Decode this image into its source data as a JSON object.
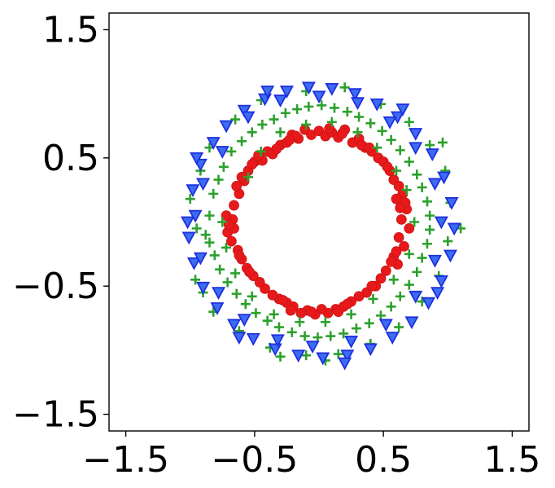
{
  "chart_data": {
    "type": "scatter",
    "title": "",
    "xlabel": "",
    "ylabel": "",
    "xlim": [
      -1.63,
      1.63
    ],
    "ylim": [
      -1.63,
      1.63
    ],
    "grid": false,
    "legend": "none",
    "x_ticks": [
      {
        "value": -1.5,
        "label": "−1.5"
      },
      {
        "value": -0.5,
        "label": "−0.5"
      },
      {
        "value": 0.5,
        "label": "0.5"
      },
      {
        "value": 1.5,
        "label": "1.5"
      }
    ],
    "y_ticks": [
      {
        "value": 1.5,
        "label": "1.5"
      },
      {
        "value": 0.5,
        "label": "0.5"
      },
      {
        "value": -0.5,
        "label": "−0.5"
      },
      {
        "value": -1.5,
        "label": "−1.5"
      }
    ],
    "series": [
      {
        "marker": "circle",
        "color": "#e8191a",
        "points": [
          [
            -0.67,
            0.02
          ],
          [
            -0.71,
            -0.08
          ],
          [
            -0.66,
            0.13
          ],
          [
            -0.62,
            0.22
          ],
          [
            -0.58,
            0.32
          ],
          [
            -0.64,
            0.28
          ],
          [
            -0.55,
            0.4
          ],
          [
            -0.5,
            0.47
          ],
          [
            -0.44,
            0.48
          ],
          [
            -0.4,
            0.55
          ],
          [
            -0.36,
            0.53
          ],
          [
            -0.3,
            0.6
          ],
          [
            -0.25,
            0.62
          ],
          [
            -0.21,
            0.68
          ],
          [
            -0.16,
            0.65
          ],
          [
            -0.11,
            0.72
          ],
          [
            -0.06,
            0.68
          ],
          [
            0.0,
            0.71
          ],
          [
            0.05,
            0.67
          ],
          [
            0.1,
            0.7
          ],
          [
            0.15,
            0.66
          ],
          [
            0.2,
            0.72
          ],
          [
            0.26,
            0.62
          ],
          [
            0.31,
            0.65
          ],
          [
            0.36,
            0.58
          ],
          [
            0.41,
            0.55
          ],
          [
            0.46,
            0.5
          ],
          [
            0.5,
            0.47
          ],
          [
            0.55,
            0.4
          ],
          [
            0.58,
            0.33
          ],
          [
            0.62,
            0.28
          ],
          [
            0.65,
            0.22
          ],
          [
            0.6,
            0.18
          ],
          [
            0.68,
            0.1
          ],
          [
            0.64,
            0.02
          ],
          [
            0.7,
            -0.05
          ],
          [
            0.62,
            -0.12
          ],
          [
            0.66,
            -0.19
          ],
          [
            0.58,
            -0.27
          ],
          [
            0.61,
            -0.33
          ],
          [
            0.52,
            -0.38
          ],
          [
            0.48,
            -0.44
          ],
          [
            0.44,
            -0.5
          ],
          [
            0.37,
            -0.55
          ],
          [
            0.31,
            -0.58
          ],
          [
            0.25,
            -0.62
          ],
          [
            0.19,
            -0.66
          ],
          [
            0.13,
            -0.68
          ],
          [
            0.07,
            -0.71
          ],
          [
            0.02,
            -0.68
          ],
          [
            -0.03,
            -0.72
          ],
          [
            -0.09,
            -0.69
          ],
          [
            -0.14,
            -0.71
          ],
          [
            -0.2,
            -0.66
          ],
          [
            -0.25,
            -0.63
          ],
          [
            -0.31,
            -0.6
          ],
          [
            -0.36,
            -0.57
          ],
          [
            -0.42,
            -0.52
          ],
          [
            -0.46,
            -0.47
          ],
          [
            -0.51,
            -0.42
          ],
          [
            -0.56,
            -0.36
          ],
          [
            -0.6,
            -0.29
          ],
          [
            -0.63,
            -0.22
          ],
          [
            -0.68,
            -0.15
          ],
          [
            -0.66,
            -0.05
          ],
          [
            -0.72,
            0.05
          ],
          [
            -0.52,
            0.45
          ],
          [
            -0.47,
            0.52
          ],
          [
            -0.33,
            0.57
          ],
          [
            -0.18,
            0.67
          ],
          [
            0.18,
            0.69
          ],
          [
            0.33,
            0.6
          ],
          [
            0.53,
            0.43
          ],
          [
            0.67,
            0.15
          ],
          [
            0.6,
            -0.23
          ],
          [
            0.41,
            -0.5
          ],
          [
            0.22,
            -0.64
          ],
          [
            -0.06,
            -0.7
          ],
          [
            -0.28,
            -0.61
          ],
          [
            -0.54,
            -0.39
          ],
          [
            -0.7,
            -0.02
          ],
          [
            -0.6,
            0.35
          ],
          [
            -0.23,
            0.64
          ],
          [
            0.08,
            0.73
          ],
          [
            0.39,
            0.58
          ],
          [
            0.63,
            0.11
          ],
          [
            0.56,
            -0.31
          ],
          [
            0.15,
            -0.7
          ],
          [
            -0.22,
            -0.69
          ],
          [
            -0.62,
            -0.26
          ]
        ]
      },
      {
        "marker": "plus",
        "color": "#2ca02c",
        "points": [
          [
            -0.85,
            0.05
          ],
          [
            -0.88,
            -0.1
          ],
          [
            -0.82,
            0.22
          ],
          [
            -0.78,
            0.33
          ],
          [
            -0.74,
            0.43
          ],
          [
            -0.68,
            0.55
          ],
          [
            -0.6,
            0.63
          ],
          [
            -0.52,
            0.7
          ],
          [
            -0.44,
            0.76
          ],
          [
            -0.35,
            0.8
          ],
          [
            -0.26,
            0.85
          ],
          [
            -0.17,
            0.88
          ],
          [
            -0.08,
            0.9
          ],
          [
            0.02,
            0.91
          ],
          [
            0.12,
            0.89
          ],
          [
            0.22,
            0.86
          ],
          [
            0.31,
            0.82
          ],
          [
            0.4,
            0.77
          ],
          [
            0.49,
            0.71
          ],
          [
            0.56,
            0.64
          ],
          [
            0.63,
            0.56
          ],
          [
            0.7,
            0.47
          ],
          [
            0.76,
            0.37
          ],
          [
            0.8,
            0.27
          ],
          [
            0.84,
            0.16
          ],
          [
            0.86,
            0.05
          ],
          [
            0.86,
            -0.06
          ],
          [
            0.84,
            -0.17
          ],
          [
            0.8,
            -0.28
          ],
          [
            0.76,
            -0.39
          ],
          [
            0.7,
            -0.49
          ],
          [
            0.63,
            -0.58
          ],
          [
            0.56,
            -0.66
          ],
          [
            0.48,
            -0.73
          ],
          [
            0.39,
            -0.79
          ],
          [
            0.29,
            -0.83
          ],
          [
            0.19,
            -0.87
          ],
          [
            0.09,
            -0.89
          ],
          [
            -0.01,
            -0.9
          ],
          [
            -0.11,
            -0.89
          ],
          [
            -0.21,
            -0.86
          ],
          [
            -0.31,
            -0.82
          ],
          [
            -0.4,
            -0.77
          ],
          [
            -0.49,
            -0.71
          ],
          [
            -0.57,
            -0.64
          ],
          [
            -0.64,
            -0.56
          ],
          [
            -0.71,
            -0.47
          ],
          [
            -0.77,
            -0.37
          ],
          [
            -0.81,
            -0.26
          ],
          [
            -0.85,
            -0.16
          ],
          [
            -0.55,
            0.35
          ],
          [
            -0.45,
            0.55
          ],
          [
            -0.3,
            0.7
          ],
          [
            -0.1,
            0.76
          ],
          [
            0.1,
            0.78
          ],
          [
            0.3,
            0.7
          ],
          [
            0.45,
            0.58
          ],
          [
            0.6,
            0.4
          ],
          [
            0.68,
            0.25
          ],
          [
            0.74,
            0.0
          ],
          [
            0.7,
            -0.25
          ],
          [
            0.58,
            -0.45
          ],
          [
            0.42,
            -0.6
          ],
          [
            0.25,
            -0.72
          ],
          [
            0.05,
            -0.78
          ],
          [
            -0.15,
            -0.78
          ],
          [
            -0.35,
            -0.72
          ],
          [
            -0.52,
            -0.58
          ],
          [
            -0.65,
            -0.4
          ],
          [
            -0.72,
            -0.2
          ],
          [
            -0.75,
            0.0
          ],
          [
            -1.0,
            0.18
          ],
          [
            -0.95,
            -0.05
          ],
          [
            -0.92,
            0.4
          ],
          [
            -0.85,
            0.58
          ],
          [
            -0.65,
            0.8
          ],
          [
            -0.45,
            0.95
          ],
          [
            -0.1,
            1.02
          ],
          [
            0.2,
            1.05
          ],
          [
            0.48,
            0.92
          ],
          [
            0.7,
            0.78
          ],
          [
            0.86,
            0.6
          ],
          [
            0.98,
            0.4
          ],
          [
            1.02,
            0.15
          ],
          [
            1.0,
            -0.15
          ],
          [
            0.93,
            -0.42
          ],
          [
            0.8,
            -0.62
          ],
          [
            0.62,
            -0.82
          ],
          [
            0.4,
            -0.95
          ],
          [
            0.15,
            -1.03
          ],
          [
            -0.1,
            -1.04
          ],
          [
            -0.38,
            -0.98
          ],
          [
            -0.62,
            -0.85
          ],
          [
            -0.82,
            -0.7
          ],
          [
            -0.96,
            -0.45
          ],
          [
            1.1,
            -0.05
          ],
          [
            0.96,
            0.62
          ],
          [
            -0.9,
            -0.55
          ],
          [
            -0.3,
            -1.05
          ],
          [
            0.05,
            -1.08
          ]
        ]
      },
      {
        "marker": "triangle-down",
        "color": "#1f2fe0",
        "points": [
          [
            -1.02,
            0.0
          ],
          [
            -0.98,
            0.25
          ],
          [
            -0.92,
            0.45
          ],
          [
            -0.82,
            0.62
          ],
          [
            -0.72,
            0.75
          ],
          [
            -0.58,
            0.87
          ],
          [
            -0.42,
            0.96
          ],
          [
            -0.25,
            1.02
          ],
          [
            -0.08,
            1.05
          ],
          [
            0.1,
            1.04
          ],
          [
            0.28,
            1.0
          ],
          [
            0.45,
            0.92
          ],
          [
            0.61,
            0.82
          ],
          [
            0.75,
            0.69
          ],
          [
            0.88,
            0.53
          ],
          [
            0.97,
            0.35
          ],
          [
            1.03,
            0.15
          ],
          [
            1.05,
            -0.05
          ],
          [
            1.02,
            -0.26
          ],
          [
            0.95,
            -0.46
          ],
          [
            0.85,
            -0.63
          ],
          [
            0.72,
            -0.78
          ],
          [
            0.57,
            -0.9
          ],
          [
            0.4,
            -0.99
          ],
          [
            0.22,
            -1.04
          ],
          [
            0.03,
            -1.06
          ],
          [
            -0.16,
            -1.04
          ],
          [
            -0.34,
            -0.99
          ],
          [
            -0.51,
            -0.91
          ],
          [
            -0.66,
            -0.8
          ],
          [
            -0.79,
            -0.67
          ],
          [
            -0.9,
            -0.51
          ],
          [
            -0.97,
            -0.32
          ],
          [
            -1.01,
            -0.12
          ],
          [
            -0.9,
            0.3
          ],
          [
            -0.75,
            0.55
          ],
          [
            -0.55,
            0.82
          ],
          [
            -0.3,
            0.95
          ],
          [
            0.0,
            0.98
          ],
          [
            0.3,
            0.93
          ],
          [
            0.55,
            0.78
          ],
          [
            0.75,
            0.58
          ],
          [
            0.9,
            0.3
          ],
          [
            0.95,
            0.0
          ],
          [
            0.9,
            -0.3
          ],
          [
            0.75,
            -0.58
          ],
          [
            0.52,
            -0.8
          ],
          [
            0.25,
            -0.93
          ],
          [
            -0.05,
            -0.97
          ],
          [
            -0.32,
            -0.92
          ],
          [
            -0.58,
            -0.76
          ],
          [
            -0.78,
            -0.55
          ],
          [
            -0.92,
            -0.28
          ],
          [
            -0.96,
            0.05
          ],
          [
            0.65,
            0.88
          ],
          [
            0.92,
            -0.55
          ],
          [
            -0.62,
            -0.9
          ],
          [
            -0.95,
            0.5
          ],
          [
            0.2,
            -1.1
          ],
          [
            -0.4,
            1.02
          ]
        ]
      }
    ]
  }
}
